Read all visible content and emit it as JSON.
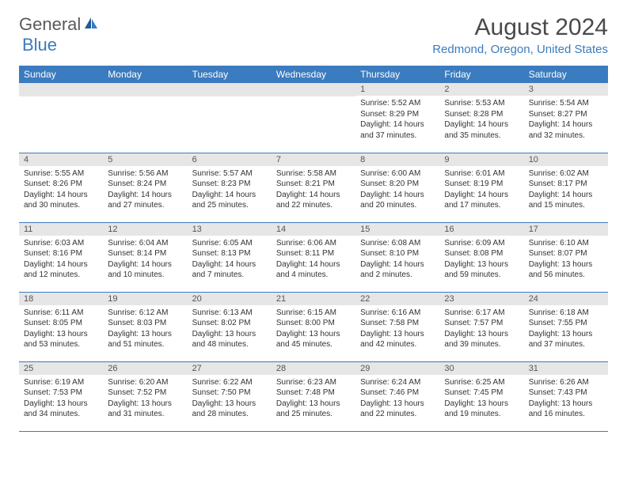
{
  "logo": {
    "text1": "General",
    "text2": "Blue"
  },
  "header": {
    "title": "August 2024",
    "location": "Redmond, Oregon, United States"
  },
  "style": {
    "brand_blue": "#3b7bbf",
    "header_bg": "#3b7bbf",
    "header_fg": "#ffffff",
    "daynum_bg": "#e6e6e6",
    "border_color": "#3b7bbf",
    "title_color": "#4a4a4a",
    "body_font_size": 10
  },
  "weekdays": [
    "Sunday",
    "Monday",
    "Tuesday",
    "Wednesday",
    "Thursday",
    "Friday",
    "Saturday"
  ],
  "weeks": [
    [
      null,
      null,
      null,
      null,
      {
        "n": "1",
        "sunrise": "5:52 AM",
        "sunset": "8:29 PM",
        "daylight": "14 hours and 37 minutes."
      },
      {
        "n": "2",
        "sunrise": "5:53 AM",
        "sunset": "8:28 PM",
        "daylight": "14 hours and 35 minutes."
      },
      {
        "n": "3",
        "sunrise": "5:54 AM",
        "sunset": "8:27 PM",
        "daylight": "14 hours and 32 minutes."
      }
    ],
    [
      {
        "n": "4",
        "sunrise": "5:55 AM",
        "sunset": "8:26 PM",
        "daylight": "14 hours and 30 minutes."
      },
      {
        "n": "5",
        "sunrise": "5:56 AM",
        "sunset": "8:24 PM",
        "daylight": "14 hours and 27 minutes."
      },
      {
        "n": "6",
        "sunrise": "5:57 AM",
        "sunset": "8:23 PM",
        "daylight": "14 hours and 25 minutes."
      },
      {
        "n": "7",
        "sunrise": "5:58 AM",
        "sunset": "8:21 PM",
        "daylight": "14 hours and 22 minutes."
      },
      {
        "n": "8",
        "sunrise": "6:00 AM",
        "sunset": "8:20 PM",
        "daylight": "14 hours and 20 minutes."
      },
      {
        "n": "9",
        "sunrise": "6:01 AM",
        "sunset": "8:19 PM",
        "daylight": "14 hours and 17 minutes."
      },
      {
        "n": "10",
        "sunrise": "6:02 AM",
        "sunset": "8:17 PM",
        "daylight": "14 hours and 15 minutes."
      }
    ],
    [
      {
        "n": "11",
        "sunrise": "6:03 AM",
        "sunset": "8:16 PM",
        "daylight": "14 hours and 12 minutes."
      },
      {
        "n": "12",
        "sunrise": "6:04 AM",
        "sunset": "8:14 PM",
        "daylight": "14 hours and 10 minutes."
      },
      {
        "n": "13",
        "sunrise": "6:05 AM",
        "sunset": "8:13 PM",
        "daylight": "14 hours and 7 minutes."
      },
      {
        "n": "14",
        "sunrise": "6:06 AM",
        "sunset": "8:11 PM",
        "daylight": "14 hours and 4 minutes."
      },
      {
        "n": "15",
        "sunrise": "6:08 AM",
        "sunset": "8:10 PM",
        "daylight": "14 hours and 2 minutes."
      },
      {
        "n": "16",
        "sunrise": "6:09 AM",
        "sunset": "8:08 PM",
        "daylight": "13 hours and 59 minutes."
      },
      {
        "n": "17",
        "sunrise": "6:10 AM",
        "sunset": "8:07 PM",
        "daylight": "13 hours and 56 minutes."
      }
    ],
    [
      {
        "n": "18",
        "sunrise": "6:11 AM",
        "sunset": "8:05 PM",
        "daylight": "13 hours and 53 minutes."
      },
      {
        "n": "19",
        "sunrise": "6:12 AM",
        "sunset": "8:03 PM",
        "daylight": "13 hours and 51 minutes."
      },
      {
        "n": "20",
        "sunrise": "6:13 AM",
        "sunset": "8:02 PM",
        "daylight": "13 hours and 48 minutes."
      },
      {
        "n": "21",
        "sunrise": "6:15 AM",
        "sunset": "8:00 PM",
        "daylight": "13 hours and 45 minutes."
      },
      {
        "n": "22",
        "sunrise": "6:16 AM",
        "sunset": "7:58 PM",
        "daylight": "13 hours and 42 minutes."
      },
      {
        "n": "23",
        "sunrise": "6:17 AM",
        "sunset": "7:57 PM",
        "daylight": "13 hours and 39 minutes."
      },
      {
        "n": "24",
        "sunrise": "6:18 AM",
        "sunset": "7:55 PM",
        "daylight": "13 hours and 37 minutes."
      }
    ],
    [
      {
        "n": "25",
        "sunrise": "6:19 AM",
        "sunset": "7:53 PM",
        "daylight": "13 hours and 34 minutes."
      },
      {
        "n": "26",
        "sunrise": "6:20 AM",
        "sunset": "7:52 PM",
        "daylight": "13 hours and 31 minutes."
      },
      {
        "n": "27",
        "sunrise": "6:22 AM",
        "sunset": "7:50 PM",
        "daylight": "13 hours and 28 minutes."
      },
      {
        "n": "28",
        "sunrise": "6:23 AM",
        "sunset": "7:48 PM",
        "daylight": "13 hours and 25 minutes."
      },
      {
        "n": "29",
        "sunrise": "6:24 AM",
        "sunset": "7:46 PM",
        "daylight": "13 hours and 22 minutes."
      },
      {
        "n": "30",
        "sunrise": "6:25 AM",
        "sunset": "7:45 PM",
        "daylight": "13 hours and 19 minutes."
      },
      {
        "n": "31",
        "sunrise": "6:26 AM",
        "sunset": "7:43 PM",
        "daylight": "13 hours and 16 minutes."
      }
    ]
  ],
  "labels": {
    "sunrise": "Sunrise:",
    "sunset": "Sunset:",
    "daylight": "Daylight:"
  }
}
